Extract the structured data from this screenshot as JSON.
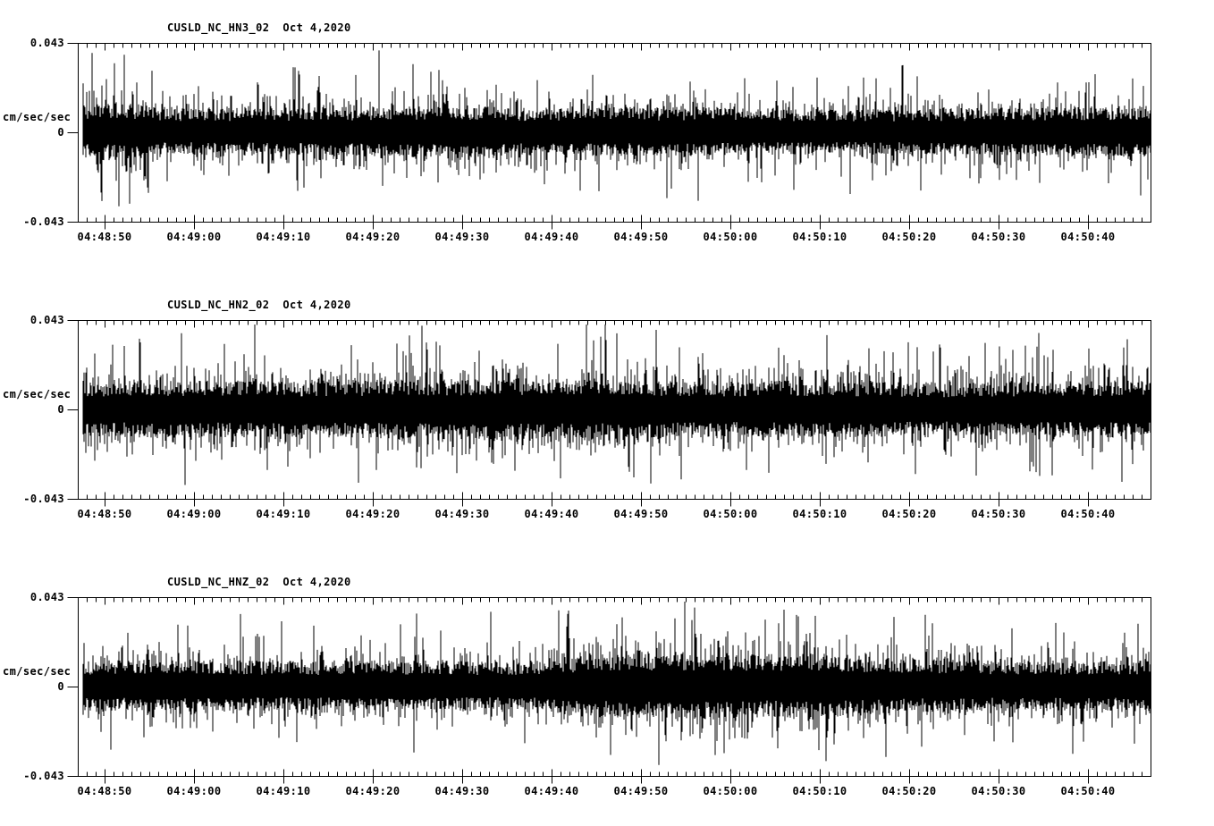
{
  "page": {
    "background_color": "#ffffff",
    "trace_color": "#000000"
  },
  "chart_data": [
    {
      "type": "line",
      "subtype": "seismogram-trace",
      "title": "CUSLD_NC_HN3_02",
      "date_label": "Oct 4,2020",
      "ylabel": "cm/sec/sec",
      "ylim": [
        -0.043,
        0.043
      ],
      "y_tick_values": [
        0.043,
        0,
        -0.043
      ],
      "y_tick_labels": [
        "0.043",
        "0",
        "-0.043"
      ],
      "x_tick_labels": [
        "04:48:50",
        "04:49:00",
        "04:49:10",
        "04:49:20",
        "04:49:30",
        "04:49:40",
        "04:49:50",
        "04:50:00",
        "04:50:10",
        "04:50:20",
        "04:50:30",
        "04:50:40"
      ],
      "x_major_interval_seconds": 10,
      "x_minor_interval_seconds": 1,
      "grid": false,
      "legend": false,
      "waveform": {
        "description": "continuous high-frequency noise, dense band ~±0.010 with spikes to ~±0.030",
        "seed": 1103,
        "core_amp": 0.01,
        "down_scale": 0.92,
        "envelope": [
          [
            0,
            1.1
          ],
          [
            0.04,
            1.2
          ],
          [
            0.08,
            0.95
          ],
          [
            0.2,
            1.0
          ],
          [
            0.3,
            1.08
          ],
          [
            0.34,
            1.15
          ],
          [
            0.4,
            1.0
          ],
          [
            0.5,
            1.05
          ],
          [
            0.6,
            1.0
          ],
          [
            0.72,
            0.92
          ],
          [
            0.8,
            0.98
          ],
          [
            0.9,
            1.0
          ],
          [
            1,
            1.08
          ]
        ],
        "spikes": [
          [
            0.05,
            0.024
          ],
          [
            0.333,
            0.03
          ],
          [
            0.62,
            0.026
          ],
          [
            0.785,
            -0.028
          ],
          [
            0.94,
            0.024
          ]
        ]
      }
    },
    {
      "type": "line",
      "subtype": "seismogram-trace",
      "title": "CUSLD_NC_HN2_02",
      "date_label": "Oct 4,2020",
      "ylabel": "cm/sec/sec",
      "ylim": [
        -0.043,
        0.043
      ],
      "y_tick_values": [
        0.043,
        0,
        -0.043
      ],
      "y_tick_labels": [
        "0.043",
        "0",
        "-0.043"
      ],
      "x_tick_labels": [
        "04:48:50",
        "04:49:00",
        "04:49:10",
        "04:49:20",
        "04:49:30",
        "04:49:40",
        "04:49:50",
        "04:50:00",
        "04:50:10",
        "04:50:20",
        "04:50:30",
        "04:50:40"
      ],
      "x_major_interval_seconds": 10,
      "x_minor_interval_seconds": 1,
      "grid": false,
      "legend": false,
      "waveform": {
        "description": "continuous high-frequency noise, dense band ~±0.011 with spikes to ~±0.035, peak near 04:49:45",
        "seed": 2207,
        "core_amp": 0.0112,
        "down_scale": 0.98,
        "envelope": [
          [
            0,
            1.0
          ],
          [
            0.1,
            1.05
          ],
          [
            0.2,
            1.0
          ],
          [
            0.3,
            1.08
          ],
          [
            0.42,
            1.12
          ],
          [
            0.5,
            1.1
          ],
          [
            0.6,
            1.0
          ],
          [
            0.7,
            1.05
          ],
          [
            0.8,
            0.95
          ],
          [
            0.9,
            1.0
          ],
          [
            1,
            1.05
          ]
        ],
        "spikes": [
          [
            0.17,
            0.026
          ],
          [
            0.3,
            0.028
          ],
          [
            0.485,
            0.035
          ],
          [
            0.56,
            -0.026
          ],
          [
            0.75,
            0.028
          ],
          [
            0.9,
            0.026
          ]
        ]
      }
    },
    {
      "type": "line",
      "subtype": "seismogram-trace",
      "title": "CUSLD_NC_HNZ_02",
      "date_label": "Oct 4,2020",
      "ylabel": "cm/sec/sec",
      "ylim": [
        -0.043,
        0.043
      ],
      "y_tick_values": [
        0.043,
        0,
        -0.043
      ],
      "y_tick_labels": [
        "0.043",
        "0",
        "-0.043"
      ],
      "x_tick_labels": [
        "04:48:50",
        "04:49:00",
        "04:49:10",
        "04:49:20",
        "04:49:30",
        "04:49:40",
        "04:49:50",
        "04:50:00",
        "04:50:10",
        "04:50:20",
        "04:50:30",
        "04:50:40"
      ],
      "x_major_interval_seconds": 10,
      "x_minor_interval_seconds": 1,
      "grid": false,
      "legend": false,
      "waveform": {
        "description": "continuous high-frequency noise with amplitude burst 04:49:43-04:50:15, spikes to ~+0.037",
        "seed": 3301,
        "core_amp": 0.0105,
        "down_scale": 0.93,
        "envelope": [
          [
            0,
            1.0
          ],
          [
            0.1,
            1.05
          ],
          [
            0.2,
            0.95
          ],
          [
            0.3,
            1.0
          ],
          [
            0.42,
            0.95
          ],
          [
            0.47,
            1.25
          ],
          [
            0.52,
            1.3
          ],
          [
            0.58,
            1.35
          ],
          [
            0.64,
            1.25
          ],
          [
            0.68,
            1.3
          ],
          [
            0.73,
            1.15
          ],
          [
            0.78,
            1.05
          ],
          [
            0.85,
            1.0
          ],
          [
            1,
            1.0
          ]
        ],
        "spikes": [
          [
            0.15,
            0.024
          ],
          [
            0.5,
            0.03
          ],
          [
            0.57,
            0.032
          ],
          [
            0.62,
            -0.025
          ],
          [
            0.651,
            -0.027
          ],
          [
            0.657,
            0.037
          ],
          [
            0.686,
            0.034
          ],
          [
            0.76,
            0.0335
          ],
          [
            0.87,
            0.028
          ]
        ]
      }
    }
  ]
}
